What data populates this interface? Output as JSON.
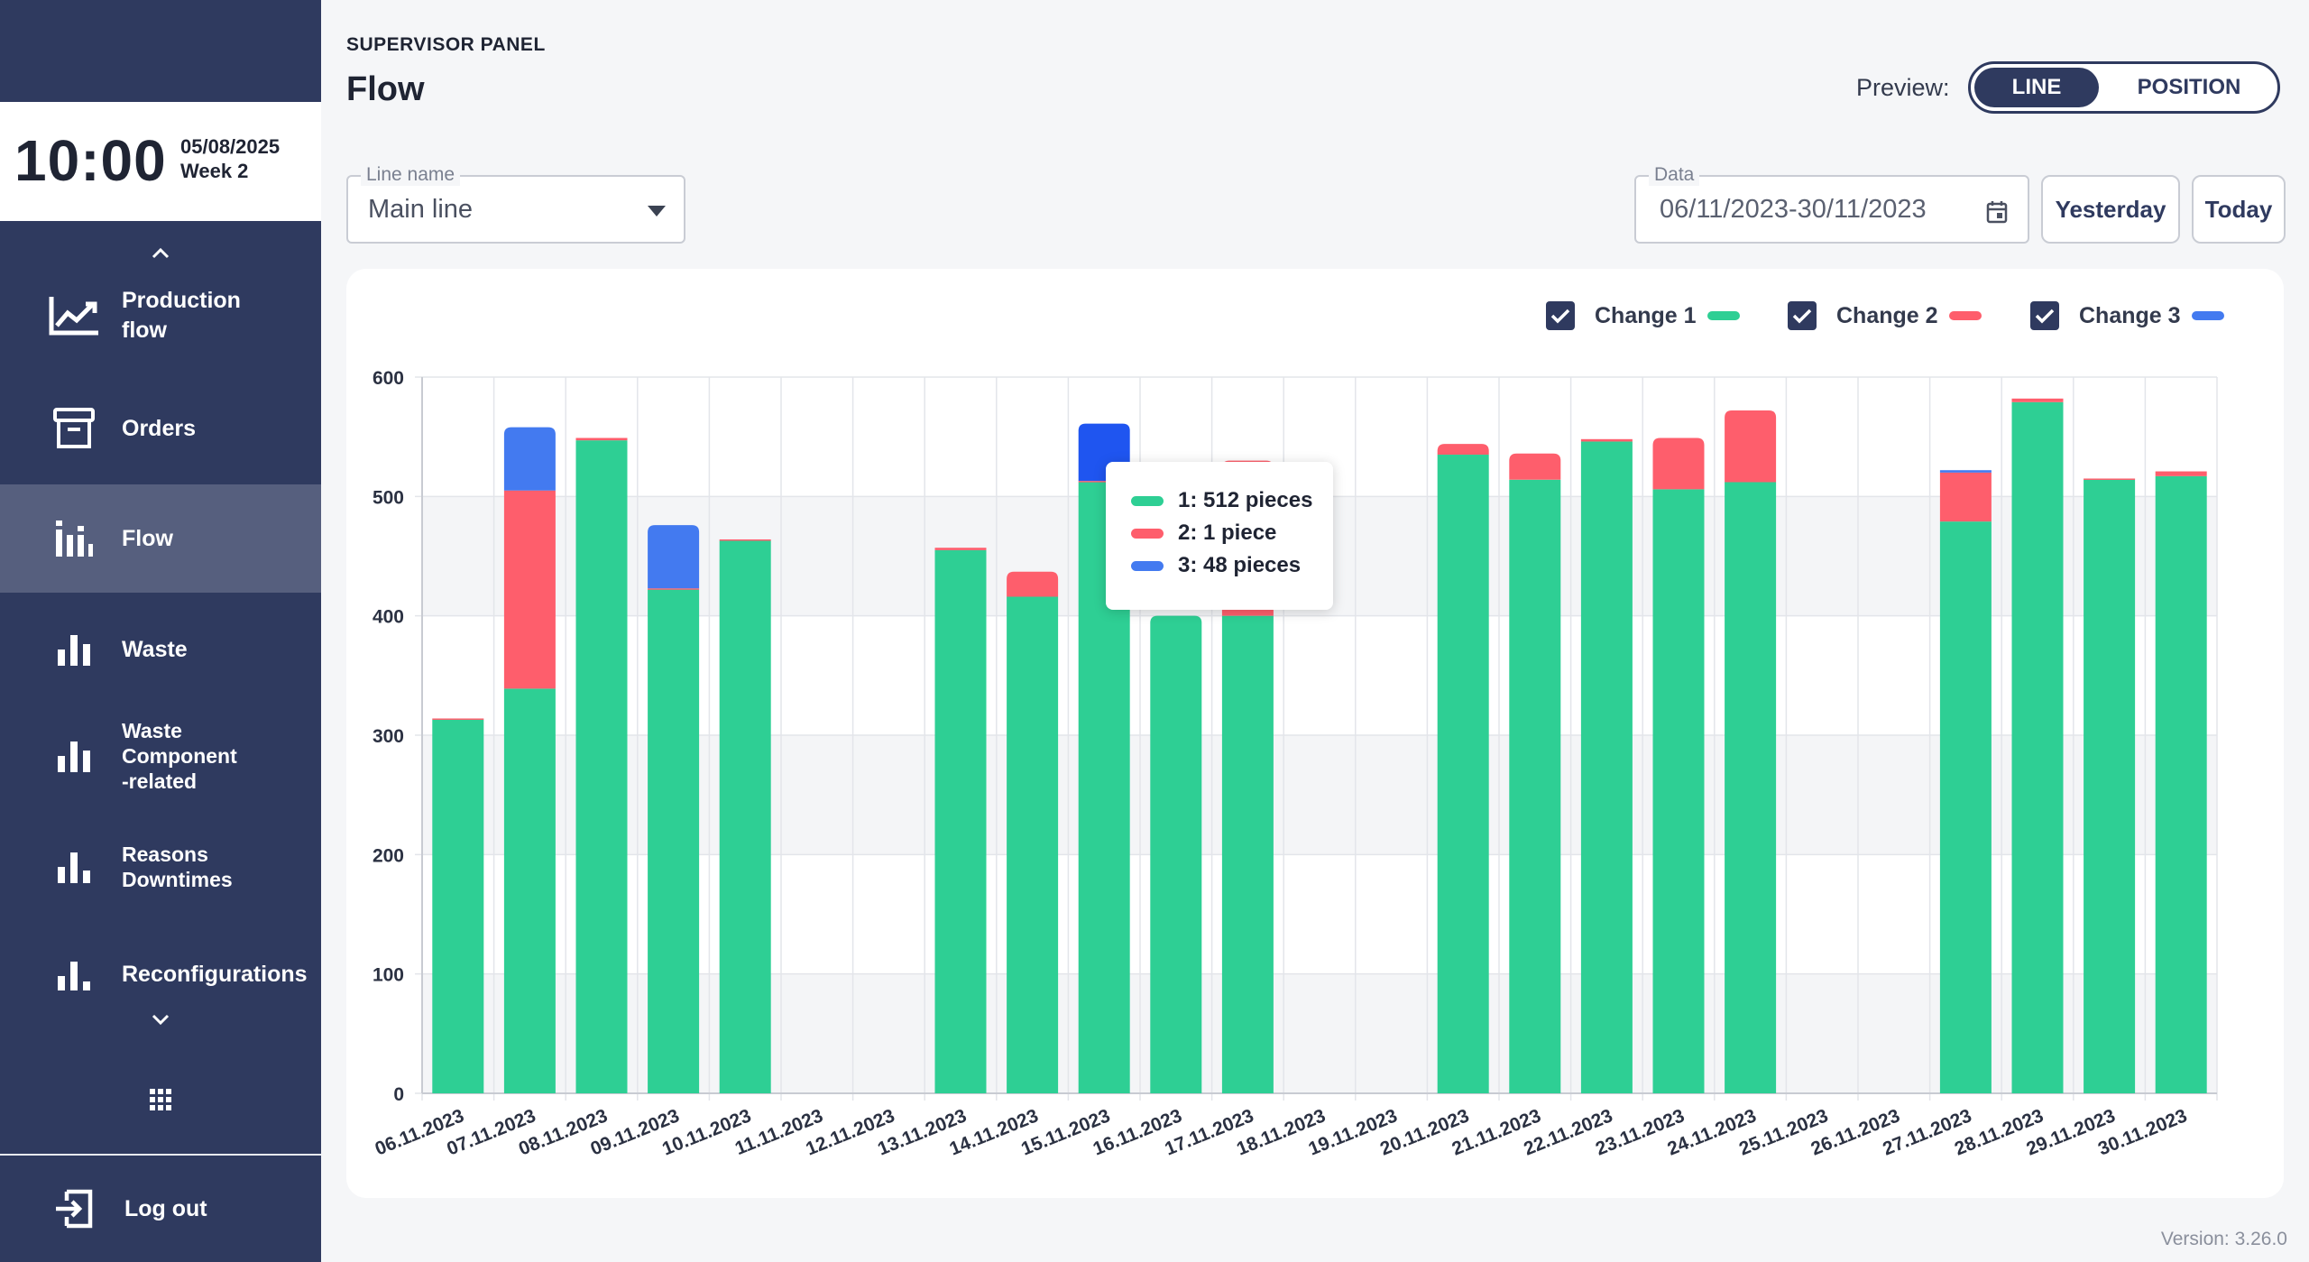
{
  "sidebar": {
    "clock": {
      "time": "10:00",
      "date": "05/08/2025",
      "week": "Week 2"
    },
    "items": [
      {
        "label_line1": "Production",
        "label_line2": "flow",
        "icon": "trend-chart-icon"
      },
      {
        "label": "Orders",
        "icon": "archive-box-icon"
      },
      {
        "label": "Flow",
        "icon": "bar-chart-icon",
        "active": true
      },
      {
        "label": "Waste",
        "icon": "bar-chart-icon"
      },
      {
        "label_line1": "Waste",
        "label_line2": "Component",
        "label_line3": "-related",
        "icon": "bar-chart-icon"
      },
      {
        "label_line1": "Reasons",
        "label_line2": "Downtimes",
        "icon": "bar-chart-icon"
      },
      {
        "label": "Reconfigurations",
        "icon": "bar-chart-icon"
      }
    ],
    "logout": "Log out"
  },
  "header": {
    "panel": "SUPERVISOR PANEL",
    "title": "Flow",
    "preview_label": "Preview:",
    "preview_options": [
      "LINE",
      "POSITION"
    ],
    "preview_selected": "LINE"
  },
  "filters": {
    "line_label": "Line name",
    "line_value": "Main line",
    "date_label": "Data",
    "date_value": "06/11/2023-30/11/2023",
    "yesterday": "Yesterday",
    "today": "Today"
  },
  "legend": [
    {
      "label": "Change 1",
      "color": "#2ecf94",
      "checked": true
    },
    {
      "label": "Change 2",
      "color": "#fe5e6c",
      "checked": true
    },
    {
      "label": "Change 3",
      "color": "#437af0",
      "checked": true
    }
  ],
  "tooltip": {
    "rows": [
      "1: 512 pieces",
      "2: 1 piece",
      "3: 48 pieces"
    ]
  },
  "chart_data": {
    "type": "bar",
    "stacked": true,
    "categories": [
      "06.11.2023",
      "07.11.2023",
      "08.11.2023",
      "09.11.2023",
      "10.11.2023",
      "11.11.2023",
      "12.11.2023",
      "13.11.2023",
      "14.11.2023",
      "15.11.2023",
      "16.11.2023",
      "17.11.2023",
      "18.11.2023",
      "19.11.2023",
      "20.11.2023",
      "21.11.2023",
      "22.11.2023",
      "23.11.2023",
      "24.11.2023",
      "25.11.2023",
      "26.11.2023",
      "27.11.2023",
      "28.11.2023",
      "29.11.2023",
      "30.11.2023"
    ],
    "series": [
      {
        "name": "Change 1",
        "color": "#2ecf94",
        "values": [
          313,
          339,
          547,
          422,
          463,
          0,
          0,
          455,
          416,
          512,
          400,
          400,
          0,
          0,
          535,
          514,
          546,
          506,
          512,
          0,
          0,
          479,
          579,
          514,
          517
        ]
      },
      {
        "name": "Change 2",
        "color": "#fe5e6c",
        "values": [
          1,
          166,
          2,
          1,
          1,
          0,
          0,
          2,
          21,
          1,
          0,
          130,
          0,
          0,
          9,
          22,
          2,
          43,
          60,
          0,
          0,
          41,
          3,
          1,
          4
        ]
      },
      {
        "name": "Change 3",
        "color": "#437af0",
        "values": [
          0,
          53,
          0,
          53,
          0,
          0,
          0,
          0,
          0,
          48,
          0,
          0,
          0,
          0,
          0,
          0,
          0,
          0,
          0,
          0,
          0,
          2,
          0,
          0,
          0
        ]
      }
    ],
    "yticks": [
      0,
      100,
      200,
      300,
      400,
      500,
      600
    ],
    "ylim": [
      0,
      600
    ],
    "highlight_index": 9,
    "grid": true
  },
  "version": "Version: 3.26.0"
}
